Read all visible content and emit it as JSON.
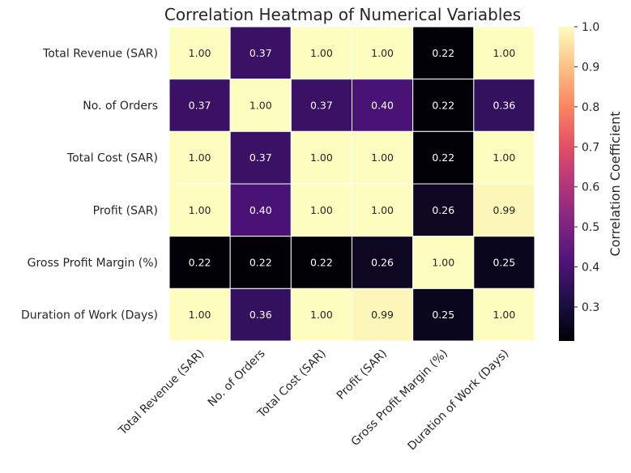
{
  "chart_data": {
    "type": "heatmap",
    "title": "Correlation Heatmap of Numerical Variables",
    "colormap": "magma",
    "x_categories": [
      "Total Revenue (SAR)",
      "No. of Orders",
      "Total Cost (SAR)",
      "Profit (SAR)",
      "Gross Profit Margin (%)",
      "Duration of Work (Days)"
    ],
    "y_categories": [
      "Total Revenue (SAR)",
      "No. of Orders",
      "Total Cost (SAR)",
      "Profit (SAR)",
      "Gross Profit Margin (%)",
      "Duration of Work (Days)"
    ],
    "values": [
      [
        1.0,
        0.37,
        1.0,
        1.0,
        0.22,
        1.0
      ],
      [
        0.37,
        1.0,
        0.37,
        0.4,
        0.22,
        0.36
      ],
      [
        1.0,
        0.37,
        1.0,
        1.0,
        0.22,
        1.0
      ],
      [
        1.0,
        0.4,
        1.0,
        1.0,
        0.26,
        0.99
      ],
      [
        0.22,
        0.22,
        0.22,
        0.26,
        1.0,
        0.25
      ],
      [
        1.0,
        0.36,
        1.0,
        0.99,
        0.25,
        1.0
      ]
    ],
    "value_labels": [
      [
        "1.00",
        "0.37",
        "1.00",
        "1.00",
        "0.22",
        "1.00"
      ],
      [
        "0.37",
        "1.00",
        "0.37",
        "0.40",
        "0.22",
        "0.36"
      ],
      [
        "1.00",
        "0.37",
        "1.00",
        "1.00",
        "0.22",
        "1.00"
      ],
      [
        "1.00",
        "0.40",
        "1.00",
        "1.00",
        "0.26",
        "0.99"
      ],
      [
        "0.22",
        "0.22",
        "0.22",
        "0.26",
        "1.00",
        "0.25"
      ],
      [
        "1.00",
        "0.36",
        "1.00",
        "0.99",
        "0.25",
        "1.00"
      ]
    ],
    "colorbar": {
      "label": "Correlation Coefficient",
      "range": [
        0.215,
        1.0
      ],
      "ticks": [
        0.3,
        0.4,
        0.5,
        0.6,
        0.7,
        0.8,
        0.9,
        1.0
      ],
      "tick_labels": [
        "0.3",
        "0.4",
        "0.5",
        "0.6",
        "0.7",
        "0.8",
        "0.9",
        "1.0"
      ]
    }
  }
}
